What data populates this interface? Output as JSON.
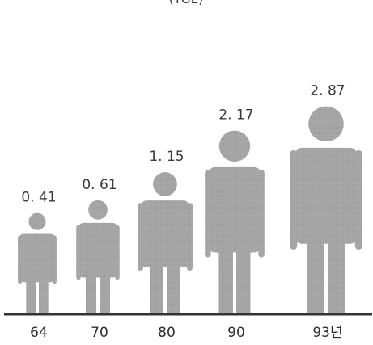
{
  "chart_data": {
    "type": "bar",
    "unit_label": "(TOE)",
    "categories": [
      "64",
      "70",
      "80",
      "90",
      "93년"
    ],
    "values": [
      0.41,
      0.61,
      1.15,
      2.17,
      2.87
    ],
    "value_labels": [
      "0. 41",
      "0. 61",
      "1. 15",
      "2. 17",
      "2. 87"
    ],
    "figure_color": "#a6a6a6",
    "baseline_color": "#333333",
    "mark_style": "human-figure"
  }
}
